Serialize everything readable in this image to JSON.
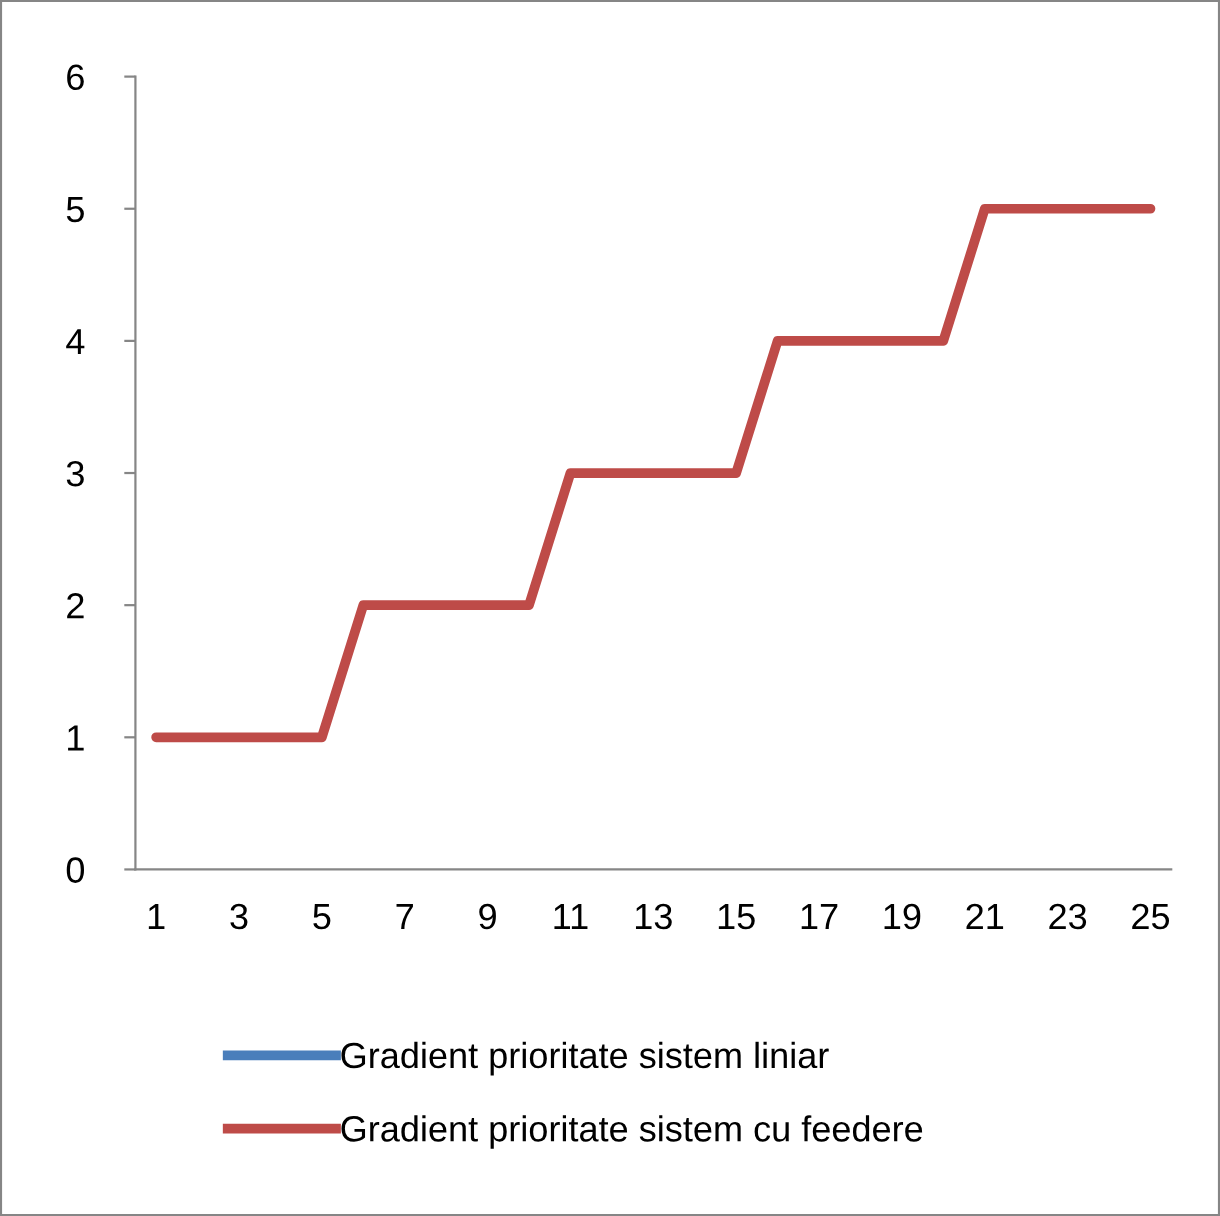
{
  "chart_data": {
    "type": "line",
    "categories": [
      "1",
      null,
      "3",
      null,
      "5",
      null,
      "7",
      null,
      "9",
      null,
      "11",
      null,
      "13",
      null,
      "15",
      null,
      "17",
      null,
      "19",
      null,
      "21",
      null,
      "23",
      null,
      "25"
    ],
    "series": [
      {
        "name": "Gradient prioritate sistem liniar",
        "color": "#4a7ebb",
        "values": [
          null,
          null,
          null,
          null,
          null,
          null,
          null,
          null,
          null,
          null,
          null,
          null,
          null,
          null,
          null,
          null,
          null,
          null,
          null,
          null,
          null,
          null,
          null,
          null,
          null
        ]
      },
      {
        "name": "Gradient prioritate sistem cu feedere",
        "color": "#be4b48",
        "values": [
          1,
          1,
          1,
          1,
          1,
          2,
          2,
          2,
          2,
          2,
          3,
          3,
          3,
          3,
          3,
          4,
          4,
          4,
          4,
          4,
          5,
          5,
          5,
          5,
          5
        ]
      }
    ],
    "ylim": [
      0,
      6
    ],
    "yticks": [
      0,
      1,
      2,
      3,
      4,
      5,
      6
    ],
    "grid": false,
    "legend": "bottom",
    "marker": "none",
    "line_style": "solid"
  }
}
